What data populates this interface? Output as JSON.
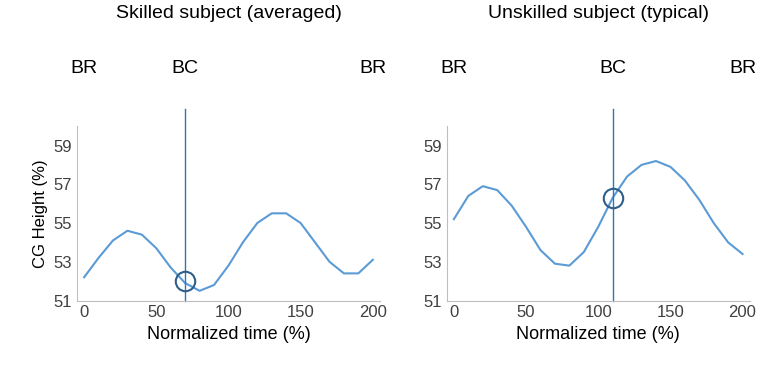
{
  "chart_data": [
    {
      "type": "line",
      "title": "Skilled subject (averaged)",
      "x_label": "Normalized time (%)",
      "y_label": "CG Height (%)",
      "x": [
        0,
        10,
        20,
        30,
        40,
        50,
        60,
        70,
        80,
        90,
        100,
        110,
        120,
        130,
        140,
        150,
        160,
        170,
        180,
        190,
        200
      ],
      "values": [
        52.2,
        53.2,
        54.1,
        54.6,
        54.4,
        53.7,
        52.7,
        51.9,
        51.5,
        51.8,
        52.8,
        54.0,
        55.0,
        55.5,
        55.5,
        55.0,
        54.0,
        53.0,
        52.4,
        52.4,
        53.1
      ],
      "color": "#5b9bd5",
      "xlim": [
        -5,
        205
      ],
      "ylim": [
        51,
        60
      ],
      "xticks": [
        0,
        50,
        100,
        150,
        200
      ],
      "yticks": [
        51,
        53,
        55,
        57,
        59
      ],
      "events": [
        {
          "label": "BR",
          "x": 0
        },
        {
          "label": "BC",
          "x": 70
        },
        {
          "label": "BR",
          "x": 200
        }
      ],
      "highlight": {
        "x": 70,
        "y": 52
      }
    },
    {
      "type": "line",
      "title": "Unskilled subject (typical)",
      "x_label": "Normalized time (%)",
      "x": [
        0,
        10,
        20,
        30,
        40,
        50,
        60,
        70,
        80,
        90,
        100,
        110,
        120,
        130,
        140,
        150,
        160,
        170,
        180,
        190,
        200
      ],
      "values": [
        55.2,
        56.4,
        56.9,
        56.7,
        55.9,
        54.8,
        53.6,
        52.9,
        52.8,
        53.5,
        54.8,
        56.3,
        57.4,
        58.0,
        58.2,
        57.9,
        57.2,
        56.2,
        55.0,
        54.0,
        53.4
      ],
      "color": "#5b9bd5",
      "xlim": [
        -5,
        205
      ],
      "ylim": [
        51,
        60
      ],
      "xticks": [
        0,
        50,
        100,
        150,
        200
      ],
      "yticks": [
        51,
        53,
        55,
        57,
        59
      ],
      "events": [
        {
          "label": "BR",
          "x": 0
        },
        {
          "label": "BC",
          "x": 110
        },
        {
          "label": "BR",
          "x": 200
        }
      ],
      "highlight": {
        "x": 110,
        "y": 56.3
      }
    }
  ]
}
